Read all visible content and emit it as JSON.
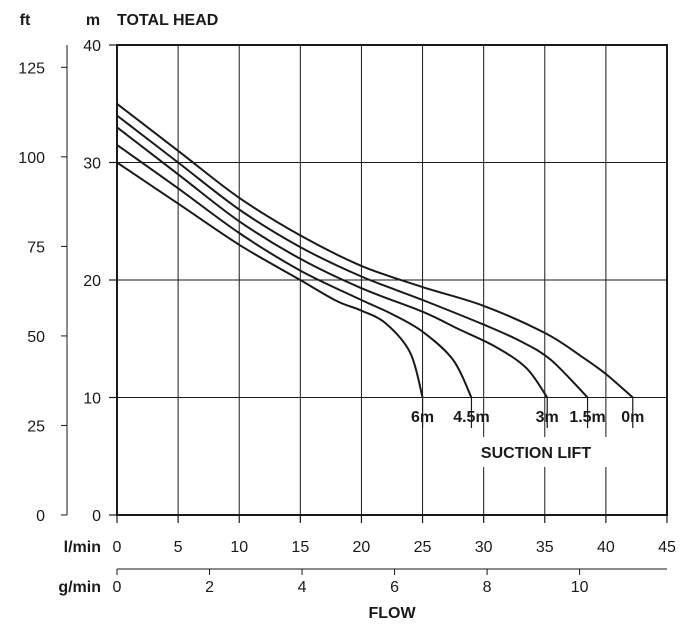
{
  "chart_data": {
    "type": "line",
    "title": "TOTAL HEAD",
    "xlabel": "FLOW",
    "legend_title": "SUCTION LIFT",
    "x_unit_primary": "l/min",
    "x_unit_secondary": "g/min",
    "y_unit_primary": "m",
    "y_unit_secondary": "ft",
    "xlim": [
      0,
      45
    ],
    "ylim": [
      0,
      40
    ],
    "x_ticks": [
      "0",
      "5",
      "10",
      "15",
      "20",
      "25",
      "30",
      "35",
      "40",
      "45"
    ],
    "y_ticks": [
      "0",
      "10",
      "20",
      "30",
      "40"
    ],
    "gpm_ticks": [
      {
        "label": "0",
        "value": 0
      },
      {
        "label": "2",
        "value": 2
      },
      {
        "label": "4",
        "value": 4
      },
      {
        "label": "6",
        "value": 6
      },
      {
        "label": "8",
        "value": 8
      },
      {
        "label": "10",
        "value": 10
      }
    ],
    "ft_ticks": [
      {
        "label": "0",
        "value": 0
      },
      {
        "label": "25",
        "value": 25
      },
      {
        "label": "50",
        "value": 50
      },
      {
        "label": "75",
        "value": 75
      },
      {
        "label": "100",
        "value": 100
      },
      {
        "label": "125",
        "value": 125
      }
    ],
    "grid": true,
    "series": [
      {
        "name": "0m",
        "x": [
          0,
          5,
          10,
          15,
          20,
          25,
          30,
          35,
          38,
          40,
          42.2
        ],
        "y": [
          35,
          31,
          27,
          23.8,
          21.2,
          19.4,
          17.8,
          15.5,
          13.5,
          12,
          10
        ]
      },
      {
        "name": "1.5m",
        "x": [
          0,
          5,
          10,
          15,
          20,
          25,
          30,
          33,
          35.5,
          38.5
        ],
        "y": [
          34,
          30,
          26,
          22.8,
          20.3,
          18.3,
          16.2,
          14.8,
          13.2,
          10
        ]
      },
      {
        "name": "3m",
        "x": [
          0,
          5,
          10,
          15,
          20,
          25,
          28,
          31,
          33.5,
          35.2
        ],
        "y": [
          33,
          29,
          25,
          21.8,
          19.3,
          17.3,
          15.8,
          14.3,
          12.5,
          10
        ]
      },
      {
        "name": "4.5m",
        "x": [
          0,
          5,
          10,
          15,
          20,
          22.5,
          25,
          27.5,
          29
        ],
        "y": [
          31.5,
          27.8,
          24,
          20.8,
          18.3,
          17.1,
          15.6,
          13.2,
          10
        ]
      },
      {
        "name": "6m",
        "x": [
          0,
          5,
          10,
          15,
          18,
          20,
          22,
          24,
          25
        ],
        "y": [
          30,
          26.5,
          23,
          20,
          18.2,
          17.4,
          16.3,
          13.8,
          10
        ]
      }
    ]
  }
}
